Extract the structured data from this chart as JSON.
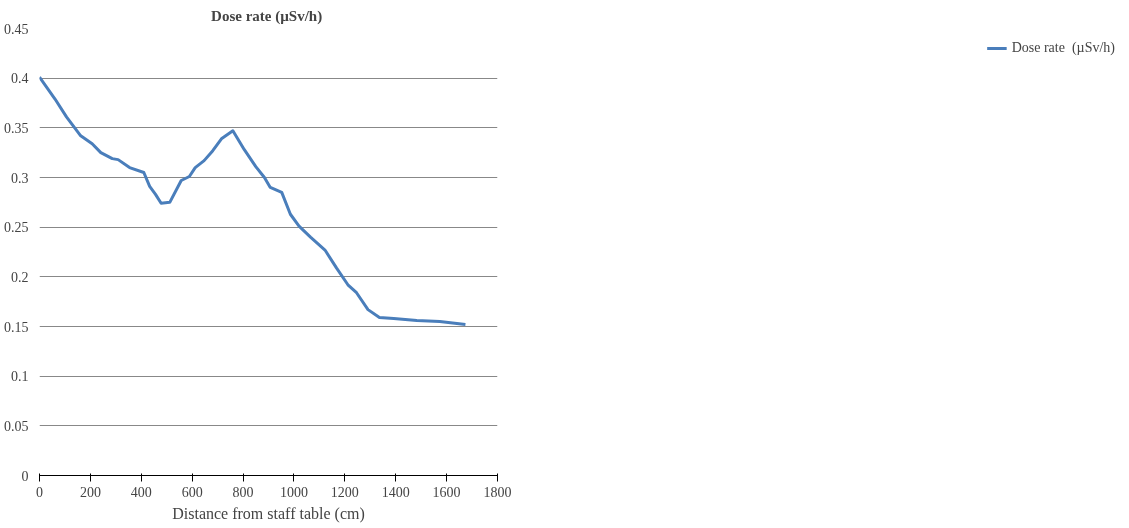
{
  "chart_data": {
    "type": "line",
    "title": "Dose rate  (µSv/h)",
    "xlabel": "Distance from staff table (cm)",
    "x": [
      0,
      61,
      106,
      162,
      207,
      241,
      286,
      309,
      354,
      410,
      433,
      456,
      478,
      512,
      557,
      589,
      612,
      647,
      681,
      715,
      760,
      805,
      850,
      884,
      907,
      952,
      986,
      1020,
      1065,
      1122,
      1167,
      1212,
      1246,
      1291,
      1336,
      1392,
      1483,
      1573,
      1674
    ],
    "series": [
      {
        "name": "Dose rate  (µSv/h)",
        "color": "#4a7ebb",
        "values": [
          0.401,
          0.379,
          0.361,
          0.342,
          0.334,
          0.325,
          0.319,
          0.318,
          0.31,
          0.305,
          0.291,
          0.283,
          0.274,
          0.275,
          0.297,
          0.301,
          0.31,
          0.317,
          0.327,
          0.339,
          0.347,
          0.328,
          0.311,
          0.3,
          0.29,
          0.285,
          0.263,
          0.251,
          0.24,
          0.227,
          0.209,
          0.192,
          0.184,
          0.167,
          0.159,
          0.158,
          0.156,
          0.155,
          0.152
        ]
      }
    ],
    "xlim": [
      0,
      1800
    ],
    "xticks": [
      0,
      200,
      400,
      600,
      800,
      1000,
      1200,
      1400,
      1600,
      1800
    ],
    "ylim": [
      0,
      0.45
    ],
    "yticks": [
      0,
      0.05,
      0.1,
      0.15,
      0.2,
      0.25,
      0.3,
      0.35,
      0.4,
      0.45
    ],
    "grid": "y",
    "legend": "right",
    "marker": "none",
    "line_style": "solid"
  }
}
